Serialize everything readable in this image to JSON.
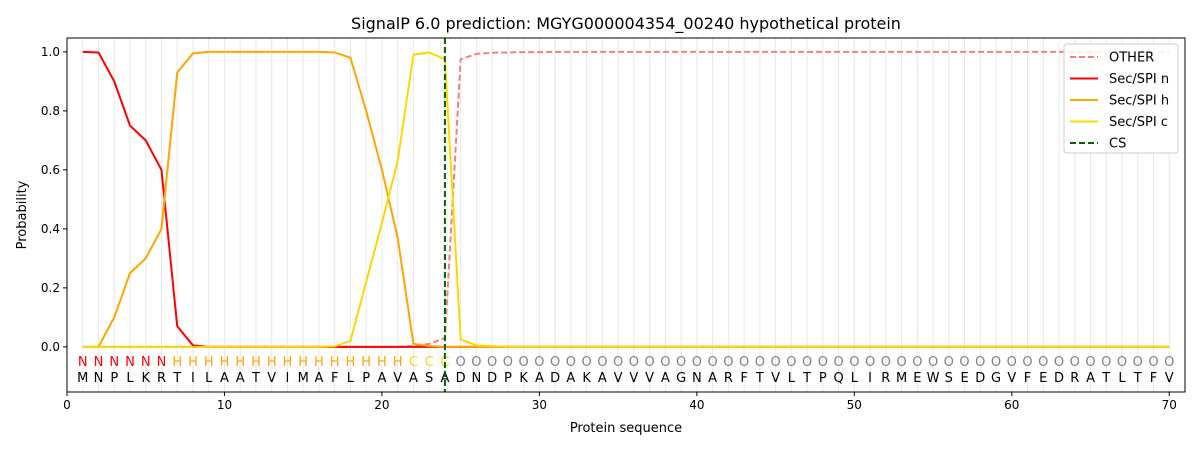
{
  "chart_data": {
    "type": "line",
    "title": "SignalP 6.0 prediction: MGYG000004354_00240 hypothetical protein",
    "xlabel": "Protein sequence",
    "ylabel": "Probability",
    "xlim": [
      0,
      71
    ],
    "ylim": [
      -0.153,
      1.047
    ],
    "xticks": [
      0,
      10,
      20,
      30,
      40,
      50,
      60,
      70
    ],
    "yticks": [
      "0.0",
      "0.2",
      "0.4",
      "0.6",
      "0.8",
      "1.0"
    ],
    "grid": "vertical lines at each residue",
    "legend_position": "top-right",
    "sequence": "MNPLKRTILAATVIMAFLPAVASADNDPKADAKAVVVAGNARFTVLTPQLIRMEWSEDGVFEDRATLTFV",
    "labels": "NNNNNNHHHHHHHHHHHHHHHCCCOOOOOOOOOOOOOOOOOOOOOOOOOOOOOOOOOOOOOOOOOOOOOO",
    "label_colors": {
      "N": "#ff0000",
      "H": "#ffa500",
      "C": "#ffd700",
      "O": "#808080"
    },
    "cleavage_site": 24,
    "series": [
      {
        "name": "OTHER",
        "color": "#f08080",
        "dash": true,
        "values": [
          0,
          0,
          0,
          0,
          0,
          0,
          0,
          0,
          0,
          0,
          0,
          0,
          0,
          0,
          0,
          0,
          0,
          0,
          0,
          0,
          0,
          0.003,
          0.01,
          0.03,
          0.975,
          0.993,
          0.997,
          0.998,
          0.999,
          0.999,
          1,
          1,
          1,
          1,
          1,
          1,
          1,
          1,
          1,
          1,
          1,
          1,
          1,
          1,
          1,
          1,
          1,
          1,
          1,
          1,
          1,
          1,
          1,
          1,
          1,
          1,
          1,
          1,
          1,
          1,
          1,
          1,
          1,
          1,
          1,
          1,
          1,
          1,
          1,
          1
        ]
      },
      {
        "name": "Sec/SPI n",
        "color": "#ff0000",
        "dash": false,
        "values": [
          1.0,
          0.998,
          0.9,
          0.75,
          0.7,
          0.6,
          0.07,
          0.005,
          0,
          0,
          0,
          0,
          0,
          0,
          0,
          0,
          0,
          0,
          0,
          0,
          0,
          0,
          0,
          0,
          0,
          0,
          0,
          0,
          0,
          0,
          0,
          0,
          0,
          0,
          0,
          0,
          0,
          0,
          0,
          0,
          0,
          0,
          0,
          0,
          0,
          0,
          0,
          0,
          0,
          0,
          0,
          0,
          0,
          0,
          0,
          0,
          0,
          0,
          0,
          0,
          0,
          0,
          0,
          0,
          0,
          0,
          0,
          0,
          0,
          0
        ]
      },
      {
        "name": "Sec/SPI h",
        "color": "#ffa500",
        "dash": false,
        "values": [
          0,
          0,
          0.1,
          0.25,
          0.3,
          0.4,
          0.93,
          0.995,
          1,
          1,
          1,
          1,
          1,
          1,
          1,
          1,
          0.998,
          0.98,
          0.8,
          0.6,
          0.37,
          0.01,
          0.003,
          0,
          0,
          0,
          0,
          0,
          0,
          0,
          0,
          0,
          0,
          0,
          0,
          0,
          0,
          0,
          0,
          0,
          0,
          0,
          0,
          0,
          0,
          0,
          0,
          0,
          0,
          0,
          0,
          0,
          0,
          0,
          0,
          0,
          0,
          0,
          0,
          0,
          0,
          0,
          0,
          0,
          0,
          0,
          0,
          0,
          0,
          0
        ]
      },
      {
        "name": "Sec/SPI c",
        "color": "#ffd700",
        "dash": false,
        "values": [
          0,
          0,
          0,
          0,
          0,
          0,
          0,
          0,
          0,
          0,
          0,
          0,
          0,
          0,
          0,
          0,
          0.002,
          0.02,
          0.22,
          0.42,
          0.63,
          0.99,
          0.998,
          0.975,
          0.025,
          0.005,
          0.002,
          0,
          0,
          0,
          0,
          0,
          0,
          0,
          0,
          0,
          0,
          0,
          0,
          0,
          0,
          0,
          0,
          0,
          0,
          0,
          0,
          0,
          0,
          0,
          0,
          0,
          0,
          0,
          0,
          0,
          0,
          0,
          0,
          0,
          0,
          0,
          0,
          0,
          0,
          0,
          0,
          0,
          0,
          0
        ]
      },
      {
        "name": "CS",
        "color": "#006400",
        "dash": true,
        "values": []
      }
    ]
  }
}
